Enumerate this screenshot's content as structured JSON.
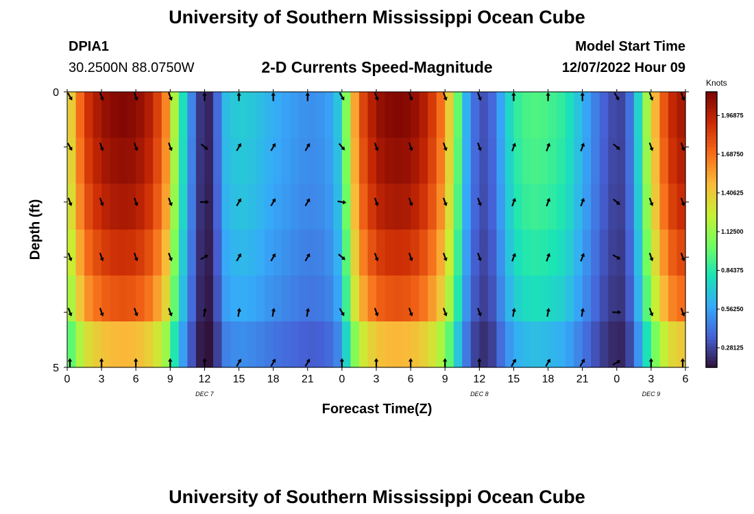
{
  "header": {
    "main_title": "University of Southern Mississippi Ocean Cube",
    "station": "DPIA1",
    "coordinates": "30.2500N  88.0750W",
    "model_start_label": "Model Start Time",
    "model_start_value": "12/07/2022 Hour 09"
  },
  "footer": {
    "repeated_title": "University of Southern Mississippi Ocean Cube"
  },
  "chart_data": {
    "type": "heatmap",
    "title": "2-D Currents Speed-Magnitude",
    "xlabel": "Forecast Time(Z)",
    "ylabel": "Depth (ft)",
    "x_tick_labels": [
      "0",
      "3",
      "6",
      "9",
      "12",
      "15",
      "18",
      "21",
      "0",
      "3",
      "6",
      "9",
      "12",
      "15",
      "18",
      "21",
      "0",
      "3",
      "6"
    ],
    "x_range_hours": [
      0,
      54
    ],
    "y_tick_labels": [
      "0",
      "5"
    ],
    "y_range_ft": [
      0,
      5
    ],
    "date_labels": [
      {
        "text": "DEC 7",
        "hour": 12
      },
      {
        "text": "DEC 8",
        "hour": 36
      },
      {
        "text": "DEC 9",
        "hour": 51
      }
    ],
    "colorbar": {
      "unit": "Knots",
      "ticks": [
        "1.96875",
        "1.68750",
        "1.40625",
        "1.12500",
        "0.84375",
        "0.56250",
        "0.28125"
      ],
      "range": [
        0.14,
        2.14
      ],
      "colors": [
        "#30123b",
        "#4662d7",
        "#36aaf9",
        "#1ae4b6",
        "#72fe5e",
        "#c8ef34",
        "#faba39",
        "#f66b19",
        "#ca2a04",
        "#7a0403"
      ]
    },
    "speed_profile_hours": [
      0,
      0.75,
      1.5,
      3,
      4.5,
      6,
      7.5,
      8.7,
      9.5,
      10.5,
      11.2,
      11.7,
      12.3,
      12.9,
      13.8,
      15,
      16.5,
      18,
      19.5,
      21,
      22.5,
      23.5,
      24.2,
      24.8,
      25.5,
      27,
      28.5,
      30,
      31.5,
      33,
      34,
      35,
      36,
      37,
      38,
      39,
      40.5,
      42,
      43.5,
      45,
      46.5,
      47.5,
      48.5,
      49.3,
      50,
      51,
      52.5,
      54
    ],
    "speed_profile_knots": [
      1.25,
      1.55,
      1.85,
      2.05,
      2.12,
      2.1,
      1.95,
      1.6,
      1.1,
      0.6,
      0.35,
      0.22,
      0.18,
      0.3,
      0.65,
      0.72,
      0.68,
      0.6,
      0.55,
      0.5,
      0.52,
      0.62,
      0.95,
      1.35,
      1.75,
      2.05,
      2.12,
      2.1,
      1.95,
      1.6,
      1.05,
      0.55,
      0.3,
      0.35,
      0.6,
      0.85,
      0.95,
      0.92,
      0.85,
      0.62,
      0.4,
      0.3,
      0.28,
      0.45,
      0.8,
      1.35,
      1.9,
      2.05
    ],
    "depth_speed_factor_by_row": [
      1.0,
      0.98,
      0.95,
      0.9,
      0.84,
      0.7
    ],
    "vector_times_hours": [
      0,
      3,
      6,
      9,
      12,
      15,
      18,
      21,
      24,
      27,
      30,
      33,
      36,
      39,
      42,
      45,
      48,
      51,
      54
    ],
    "vector_depth_ft": [
      0,
      1,
      2,
      3,
      4,
      5
    ],
    "vector_direction_deg": [
      [
        150,
        160,
        160,
        160,
        0,
        0,
        0,
        0,
        150,
        160,
        160,
        160,
        160,
        0,
        0,
        0,
        150,
        160,
        160
      ],
      [
        150,
        160,
        160,
        160,
        130,
        30,
        30,
        30,
        140,
        160,
        160,
        160,
        160,
        20,
        20,
        20,
        130,
        160,
        160
      ],
      [
        160,
        160,
        160,
        160,
        90,
        30,
        30,
        30,
        100,
        160,
        160,
        160,
        160,
        20,
        20,
        20,
        130,
        160,
        160
      ],
      [
        160,
        160,
        160,
        160,
        60,
        30,
        30,
        30,
        130,
        160,
        160,
        160,
        160,
        20,
        20,
        20,
        120,
        160,
        160
      ],
      [
        160,
        160,
        160,
        160,
        10,
        10,
        10,
        10,
        150,
        160,
        160,
        160,
        160,
        10,
        10,
        10,
        90,
        160,
        160
      ],
      [
        0,
        0,
        0,
        0,
        0,
        30,
        30,
        30,
        0,
        0,
        0,
        0,
        0,
        30,
        30,
        30,
        60,
        0,
        0
      ]
    ]
  }
}
